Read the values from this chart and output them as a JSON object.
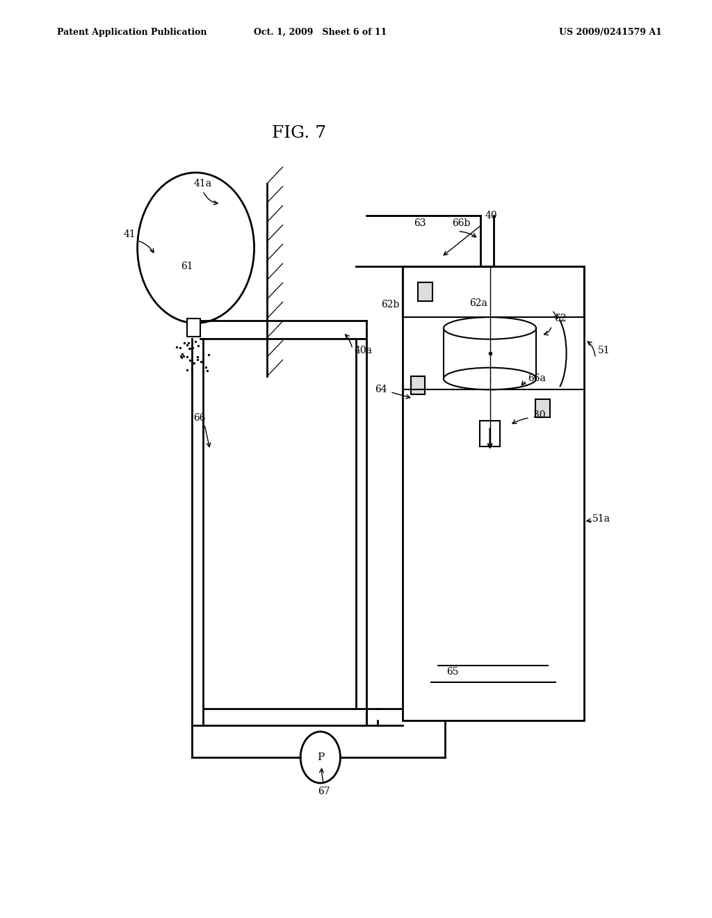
{
  "background_color": "#ffffff",
  "header_left": "Patent Application Publication",
  "header_mid": "Oct. 1, 2009   Sheet 6 of 11",
  "header_right": "US 2009/0241579 A1",
  "figure_title": "FIG. 7"
}
